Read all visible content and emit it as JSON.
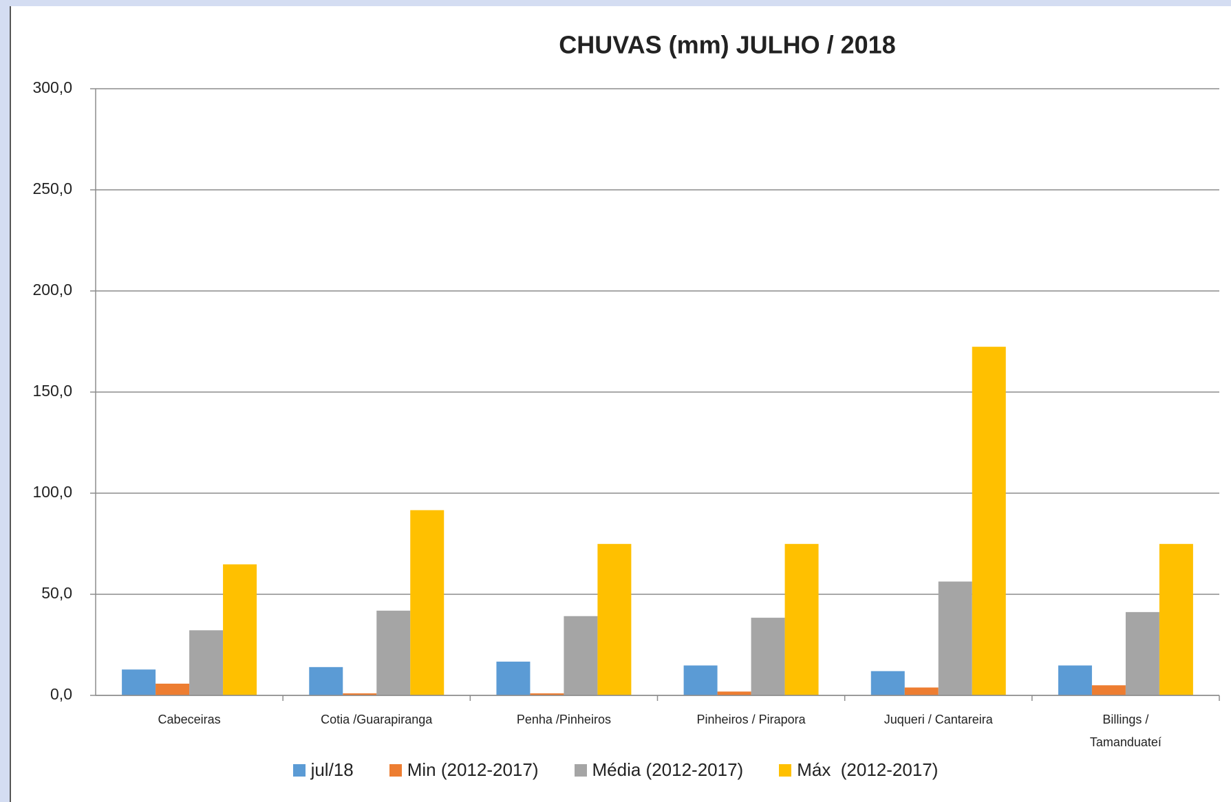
{
  "chart_data": {
    "type": "bar",
    "title": "CHUVAS (mm) JULHO / 2018",
    "categories": [
      "Cabeceiras",
      "Cotia /Guarapiranga",
      "Penha /Pinheiros",
      "Pinheiros / Pirapora",
      "Juqueri / Cantareira",
      "Billings /\nTamanduateí"
    ],
    "series": [
      {
        "name": "jul/18",
        "color": "#5b9bd5",
        "values": [
          12.8,
          14.0,
          16.7,
          14.8,
          12.0,
          14.8
        ]
      },
      {
        "name": "Min (2012-2017)",
        "color": "#ed7d31",
        "values": [
          5.8,
          1.0,
          1.0,
          1.9,
          3.9,
          5.0
        ]
      },
      {
        "name": "Média (2012-2017)",
        "color": "#a5a5a5",
        "values": [
          32.2,
          41.9,
          39.2,
          38.4,
          56.3,
          41.2
        ]
      },
      {
        "name": "Máx  (2012-2017)",
        "color": "#ffc000",
        "values": [
          64.8,
          91.6,
          74.9,
          74.9,
          172.4,
          74.9
        ]
      }
    ],
    "ylim": [
      0,
      300
    ],
    "yticks": [
      {
        "value": 0,
        "label": "0,0"
      },
      {
        "value": 50,
        "label": "50,0"
      },
      {
        "value": 100,
        "label": "100,0"
      },
      {
        "value": 150,
        "label": "150,0"
      },
      {
        "value": 200,
        "label": "200,0"
      },
      {
        "value": 250,
        "label": "250,0"
      },
      {
        "value": 300,
        "label": "300,0"
      }
    ],
    "grid": true,
    "legend": "bottom"
  }
}
